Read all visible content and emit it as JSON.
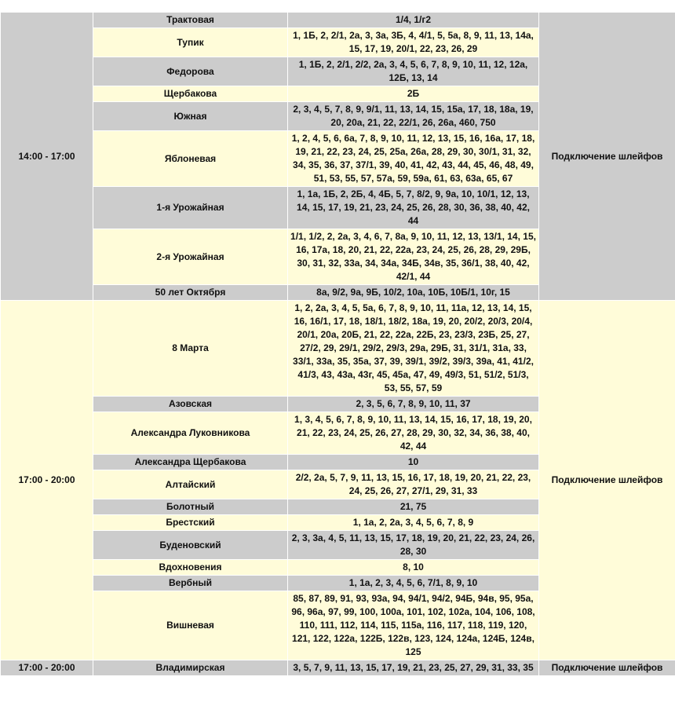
{
  "colors": {
    "row_gray": "#cccccc",
    "row_cream": "#fffcd9"
  },
  "groups": [
    {
      "time": "14:00 - 17:00",
      "reason": "Подключение шлейфов",
      "rows": [
        {
          "street": "Трактовая",
          "houses": "1/4, 1/г2"
        },
        {
          "street": "Тупик",
          "houses": "1, 1Б, 2, 2/1, 2а, 3, 3а, 3Б, 4, 4/1, 5, 5а, 8, 9, 11, 13, 14а, 15, 17, 19, 20/1, 22, 23, 26, 29"
        },
        {
          "street": "Федорова",
          "houses": "1, 1Б, 2, 2/1, 2/2, 2а, 3, 4, 5, 6, 7, 8, 9, 10, 11, 12, 12а, 12Б, 13, 14"
        },
        {
          "street": "Щербакова",
          "houses": "2Б"
        },
        {
          "street": "Южная",
          "houses": "2, 3, 4, 5, 7, 8, 9, 9/1, 11, 13, 14, 15, 15а, 17, 18, 18а, 19, 20, 20а, 21, 22, 22/1, 26, 26а, 460, 750"
        },
        {
          "street": "Яблоневая",
          "houses": "1, 2, 4, 5, 6, 6а, 7, 8, 9, 10, 11, 12, 13, 15, 16, 16а, 17, 18, 19, 21, 22, 23, 24, 25, 25а, 26а, 28, 29, 30, 30/1, 31, 32, 34, 35, 36, 37, 37/1, 39, 40, 41, 42, 43, 44, 45, 46, 48, 49, 51, 53, 55, 57, 57а, 59, 59а, 61, 63, 63а, 65, 67"
        },
        {
          "street": "1-я Урожайная",
          "houses": "1, 1а, 1Б, 2, 2Б, 4, 4Б, 5, 7, 8/2, 9, 9а, 10, 10/1, 12, 13, 14, 15, 17, 19, 21, 23, 24, 25, 26, 28, 30, 36, 38, 40, 42, 44"
        },
        {
          "street": "2-я Урожайная",
          "houses": "1/1, 1/2, 2, 2а, 3, 4, 6, 7, 8а, 9, 10, 11, 12, 13, 13/1, 14, 15, 16, 17а, 18, 20, 21, 22, 22а, 23, 24, 25, 26, 28, 29, 29Б, 30, 31, 32, 33а, 34, 34а, 34Б, 34в, 35, 36/1, 38, 40, 42, 42/1, 44"
        },
        {
          "street": "50 лет Октября",
          "houses": "8а, 9/2, 9а, 9Б, 10/2, 10а, 10Б, 10Б/1, 10г, 15"
        }
      ]
    },
    {
      "time": "17:00 - 20:00",
      "reason": "Подключение шлейфов",
      "rows": [
        {
          "street": "8 Марта",
          "houses": "1, 2, 2а, 3, 4, 5, 5а, 6, 7, 8, 9, 10, 11, 11а, 12, 13, 14, 15, 16, 16/1, 17, 18, 18/1, 18/2, 18а, 19, 20, 20/2, 20/3, 20/4, 20/1, 20а, 20Б, 21, 22, 22а, 22Б, 23, 23/3, 23Б, 25, 27, 27/2, 29, 29/1, 29/2, 29/3, 29а, 29Б, 31, 31/1, 31а, 33, 33/1, 33а, 35, 35а, 37, 39, 39/1, 39/2, 39/3, 39а, 41, 41/2, 41/3, 43, 43а, 43г, 45, 45а, 47, 49, 49/3, 51, 51/2, 51/3, 53, 55, 57, 59"
        },
        {
          "street": "Азовская",
          "houses": "2, 3, 5, 6, 7, 8, 9, 10, 11, 37"
        },
        {
          "street": "Александра Луковникова",
          "houses": "1, 3, 4, 5, 6, 7, 8, 9, 10, 11, 13, 14, 15, 16, 17, 18, 19, 20, 21, 22, 23, 24, 25, 26, 27, 28, 29, 30, 32, 34, 36, 38, 40, 42, 44"
        },
        {
          "street": "Александра Щербакова",
          "houses": "10"
        },
        {
          "street": "Алтайский",
          "houses": "2/2, 2а, 5, 7, 9, 11, 13, 15, 16, 17, 18, 19, 20, 21, 22, 23, 24, 25, 26, 27, 27/1, 29, 31, 33"
        },
        {
          "street": "Болотный",
          "houses": "21, 75"
        },
        {
          "street": "Брестский",
          "houses": "1, 1а, 2, 2а, 3, 4, 5, 6, 7, 8, 9"
        },
        {
          "street": "Буденовский",
          "houses": "2, 3, 3а, 4, 5, 11, 13, 15, 17, 18, 19, 20, 21, 22, 23, 24, 26, 28, 30"
        },
        {
          "street": "Вдохновения",
          "houses": "8, 10"
        },
        {
          "street": "Вербный",
          "houses": "1, 1а, 2, 3, 4, 5, 6, 7/1, 8, 9, 10"
        },
        {
          "street": "Вишневая",
          "houses": "85, 87, 89, 91, 93, 93а, 94, 94/1, 94/2, 94Б, 94в, 95, 95а, 96, 96а, 97, 99, 100, 100а, 101, 102, 102а, 104, 106, 108, 110, 111, 112, 114, 115, 115а, 116, 117, 118, 119, 120, 121, 122, 122а, 122Б, 122в, 123, 124, 124а, 124Б, 124в, 125"
        }
      ]
    },
    {
      "time": "17:00 - 20:00",
      "reason": "Подключение шлейфов",
      "rows": [
        {
          "street": "Владимирская",
          "houses": "3, 5, 7, 9, 11, 13, 15, 17, 19, 21, 23, 25, 27, 29, 31, 33, 35"
        }
      ]
    }
  ]
}
